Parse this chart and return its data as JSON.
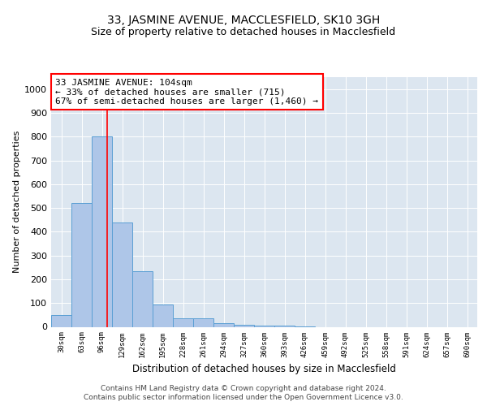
{
  "title": "33, JASMINE AVENUE, MACCLESFIELD, SK10 3GH",
  "subtitle": "Size of property relative to detached houses in Macclesfield",
  "xlabel": "Distribution of detached houses by size in Macclesfield",
  "ylabel": "Number of detached properties",
  "bin_labels": [
    "30sqm",
    "63sqm",
    "96sqm",
    "129sqm",
    "162sqm",
    "195sqm",
    "228sqm",
    "261sqm",
    "294sqm",
    "327sqm",
    "360sqm",
    "393sqm",
    "426sqm",
    "459sqm",
    "492sqm",
    "525sqm",
    "558sqm",
    "591sqm",
    "624sqm",
    "657sqm",
    "690sqm"
  ],
  "bar_heights": [
    50,
    520,
    800,
    440,
    235,
    95,
    35,
    35,
    15,
    10,
    5,
    4,
    2,
    0,
    0,
    0,
    0,
    0,
    0,
    0,
    0
  ],
  "bar_color": "#aec6e8",
  "bar_edge_color": "#5a9fd4",
  "bar_width": 1.0,
  "red_line_bin": 2.25,
  "annotation_line1": "33 JASMINE AVENUE: 104sqm",
  "annotation_line2": "← 33% of detached houses are smaller (715)",
  "annotation_line3": "67% of semi-detached houses are larger (1,460) →",
  "annotation_box_color": "white",
  "annotation_box_edge_color": "red",
  "ylim": [
    0,
    1050
  ],
  "yticks": [
    0,
    100,
    200,
    300,
    400,
    500,
    600,
    700,
    800,
    900,
    1000
  ],
  "background_color": "#dce6f0",
  "footer_line1": "Contains HM Land Registry data © Crown copyright and database right 2024.",
  "footer_line2": "Contains public sector information licensed under the Open Government Licence v3.0.",
  "title_fontsize": 10,
  "subtitle_fontsize": 9,
  "annotation_fontsize": 8
}
